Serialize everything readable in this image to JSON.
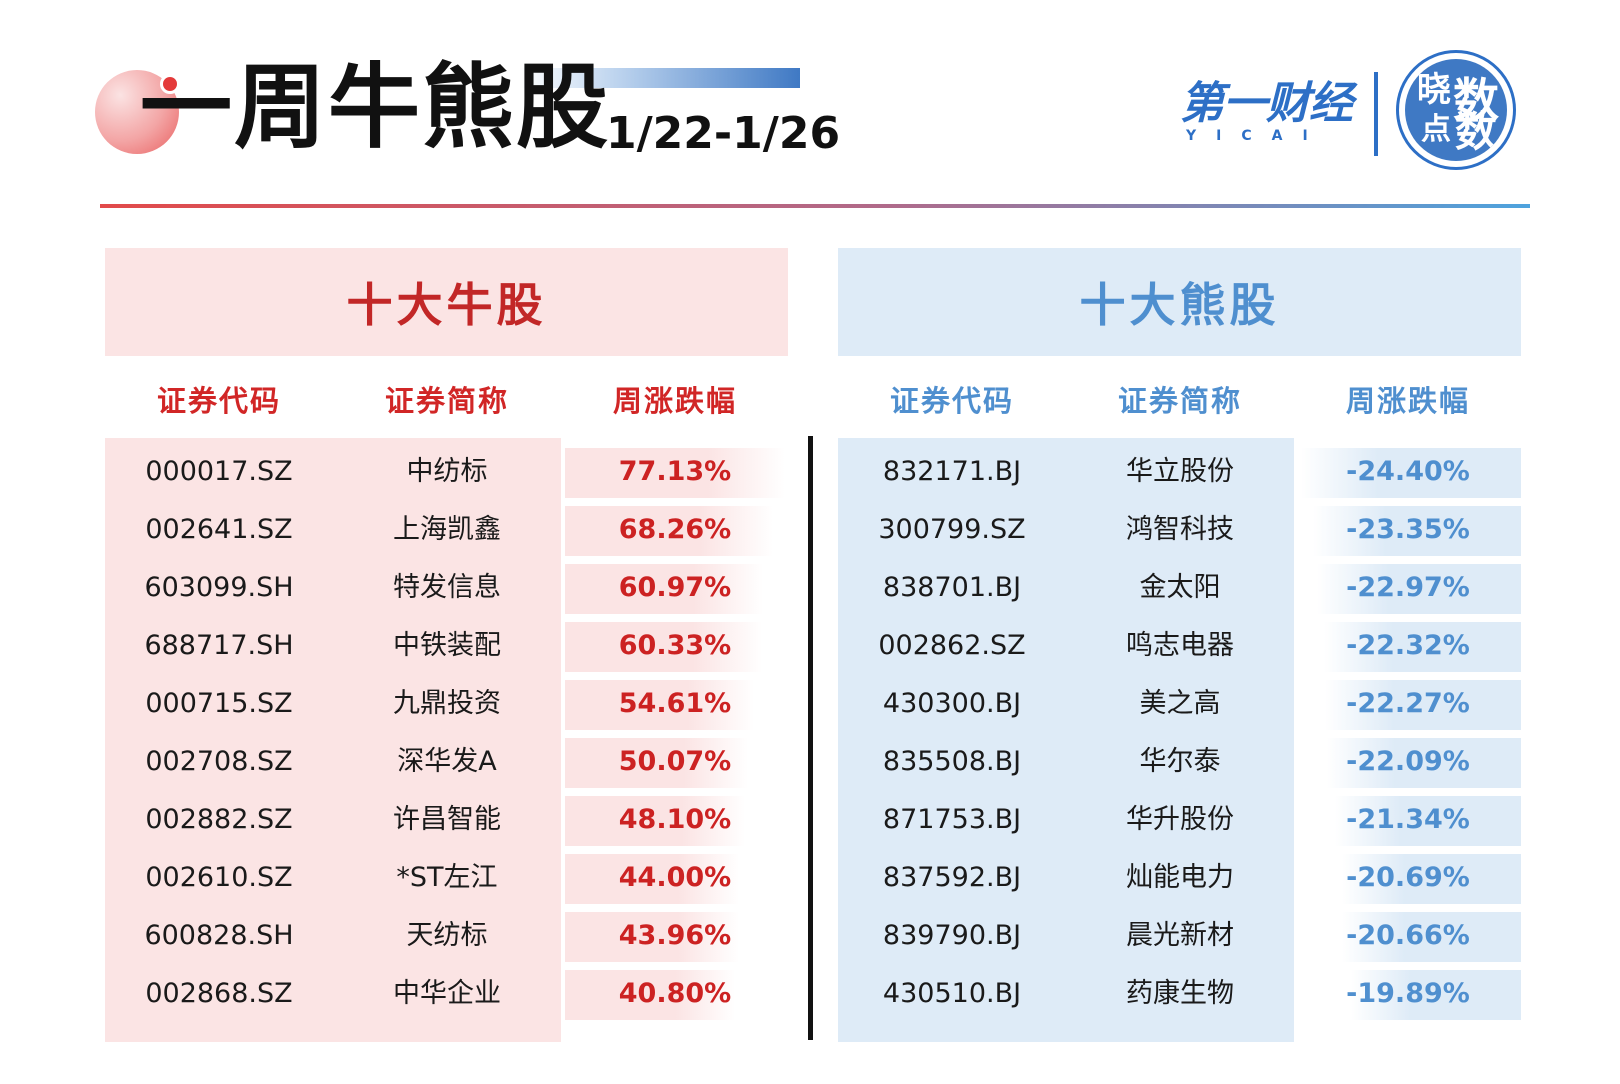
{
  "header": {
    "title": "一周牛熊股",
    "date_range": "1/22-1/26",
    "brand_cn": "第一财经",
    "brand_en": "YICAI",
    "badge_chars": [
      "晓",
      "数",
      "点",
      "数"
    ]
  },
  "colors": {
    "bull": "#cc2222",
    "bull_bg": "#fbe4e4",
    "bear": "#4f8fcf",
    "bear_bg": "#deebf7"
  },
  "bull": {
    "title": "十大牛股",
    "columns": [
      "证券代码",
      "证券简称",
      "周涨跌幅"
    ],
    "rows": [
      {
        "code": "000017.SZ",
        "name": "中纺标",
        "change": "77.13%",
        "magnitude": 77.13
      },
      {
        "code": "002641.SZ",
        "name": "上海凯鑫",
        "change": "68.26%",
        "magnitude": 68.26
      },
      {
        "code": "603099.SH",
        "name": "特发信息",
        "change": "60.97%",
        "magnitude": 60.97
      },
      {
        "code": "688717.SH",
        "name": "中铁装配",
        "change": "60.33%",
        "magnitude": 60.33
      },
      {
        "code": "000715.SZ",
        "name": "九鼎投资",
        "change": "54.61%",
        "magnitude": 54.61
      },
      {
        "code": "002708.SZ",
        "name": "深华发A",
        "change": "50.07%",
        "magnitude": 50.07
      },
      {
        "code": "002882.SZ",
        "name": "许昌智能",
        "change": "48.10%",
        "magnitude": 48.1
      },
      {
        "code": "002610.SZ",
        "name": "*ST左江",
        "change": "44.00%",
        "magnitude": 44.0
      },
      {
        "code": "600828.SH",
        "name": "天纺标",
        "change": "43.96%",
        "magnitude": 43.96
      },
      {
        "code": "002868.SZ",
        "name": "中华企业",
        "change": "40.80%",
        "magnitude": 40.8
      }
    ]
  },
  "bear": {
    "title": "十大熊股",
    "columns": [
      "证券代码",
      "证券简称",
      "周涨跌幅"
    ],
    "rows": [
      {
        "code": "832171.BJ",
        "name": "华立股份",
        "change": "-24.40%",
        "magnitude": 24.4
      },
      {
        "code": "300799.SZ",
        "name": "鸿智科技",
        "change": "-23.35%",
        "magnitude": 23.35
      },
      {
        "code": "838701.BJ",
        "name": "金太阳",
        "change": "-22.97%",
        "magnitude": 22.97
      },
      {
        "code": "002862.SZ",
        "name": "鸣志电器",
        "change": "-22.32%",
        "magnitude": 22.32
      },
      {
        "code": "430300.BJ",
        "name": "美之高",
        "change": "-22.27%",
        "magnitude": 22.27
      },
      {
        "code": "835508.BJ",
        "name": "华尔泰",
        "change": "-22.09%",
        "magnitude": 22.09
      },
      {
        "code": "871753.BJ",
        "name": "华升股份",
        "change": "-21.34%",
        "magnitude": 21.34
      },
      {
        "code": "837592.BJ",
        "name": "灿能电力",
        "change": "-20.69%",
        "magnitude": 20.69
      },
      {
        "code": "839790.BJ",
        "name": "晨光新材",
        "change": "-20.66%",
        "magnitude": 20.66
      },
      {
        "code": "430510.BJ",
        "name": "药康生物",
        "change": "-19.89%",
        "magnitude": 19.89
      }
    ]
  }
}
